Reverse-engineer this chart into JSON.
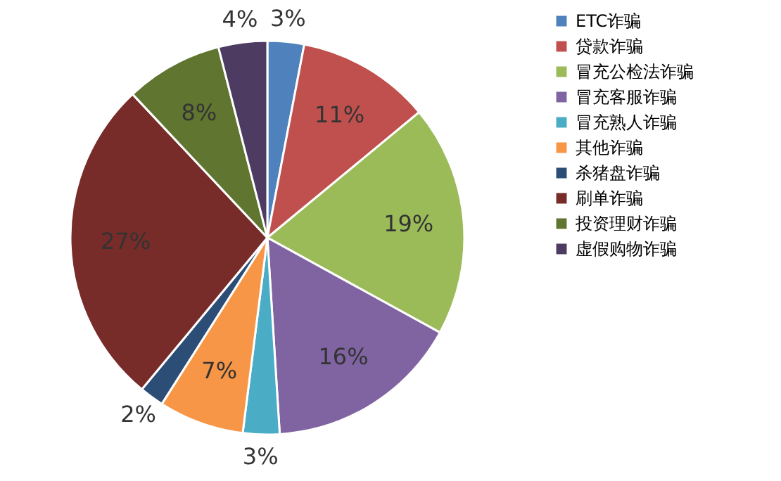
{
  "chart_data": {
    "type": "pie",
    "categories": [
      "ETC诈骗",
      "贷款诈骗",
      "冒充公检法诈骗",
      "冒充客服诈骗",
      "冒充熟人诈骗",
      "其他诈骗",
      "杀猪盘诈骗",
      "刷单诈骗",
      "投资理财诈骗",
      "虚假购物诈骗"
    ],
    "values": [
      3,
      11,
      19,
      16,
      3,
      7,
      2,
      27,
      8,
      4
    ],
    "colors": [
      "#4f81bd",
      "#c0504d",
      "#9bbb59",
      "#8064a2",
      "#4bacc6",
      "#f79646",
      "#2c4d75",
      "#772c2a",
      "#5f7530",
      "#4d3b62"
    ],
    "value_labels": [
      "3%",
      "11%",
      "19%",
      "16%",
      "3%",
      "7%",
      "2%",
      "27%",
      "8%",
      "4%"
    ],
    "legend": "right"
  }
}
